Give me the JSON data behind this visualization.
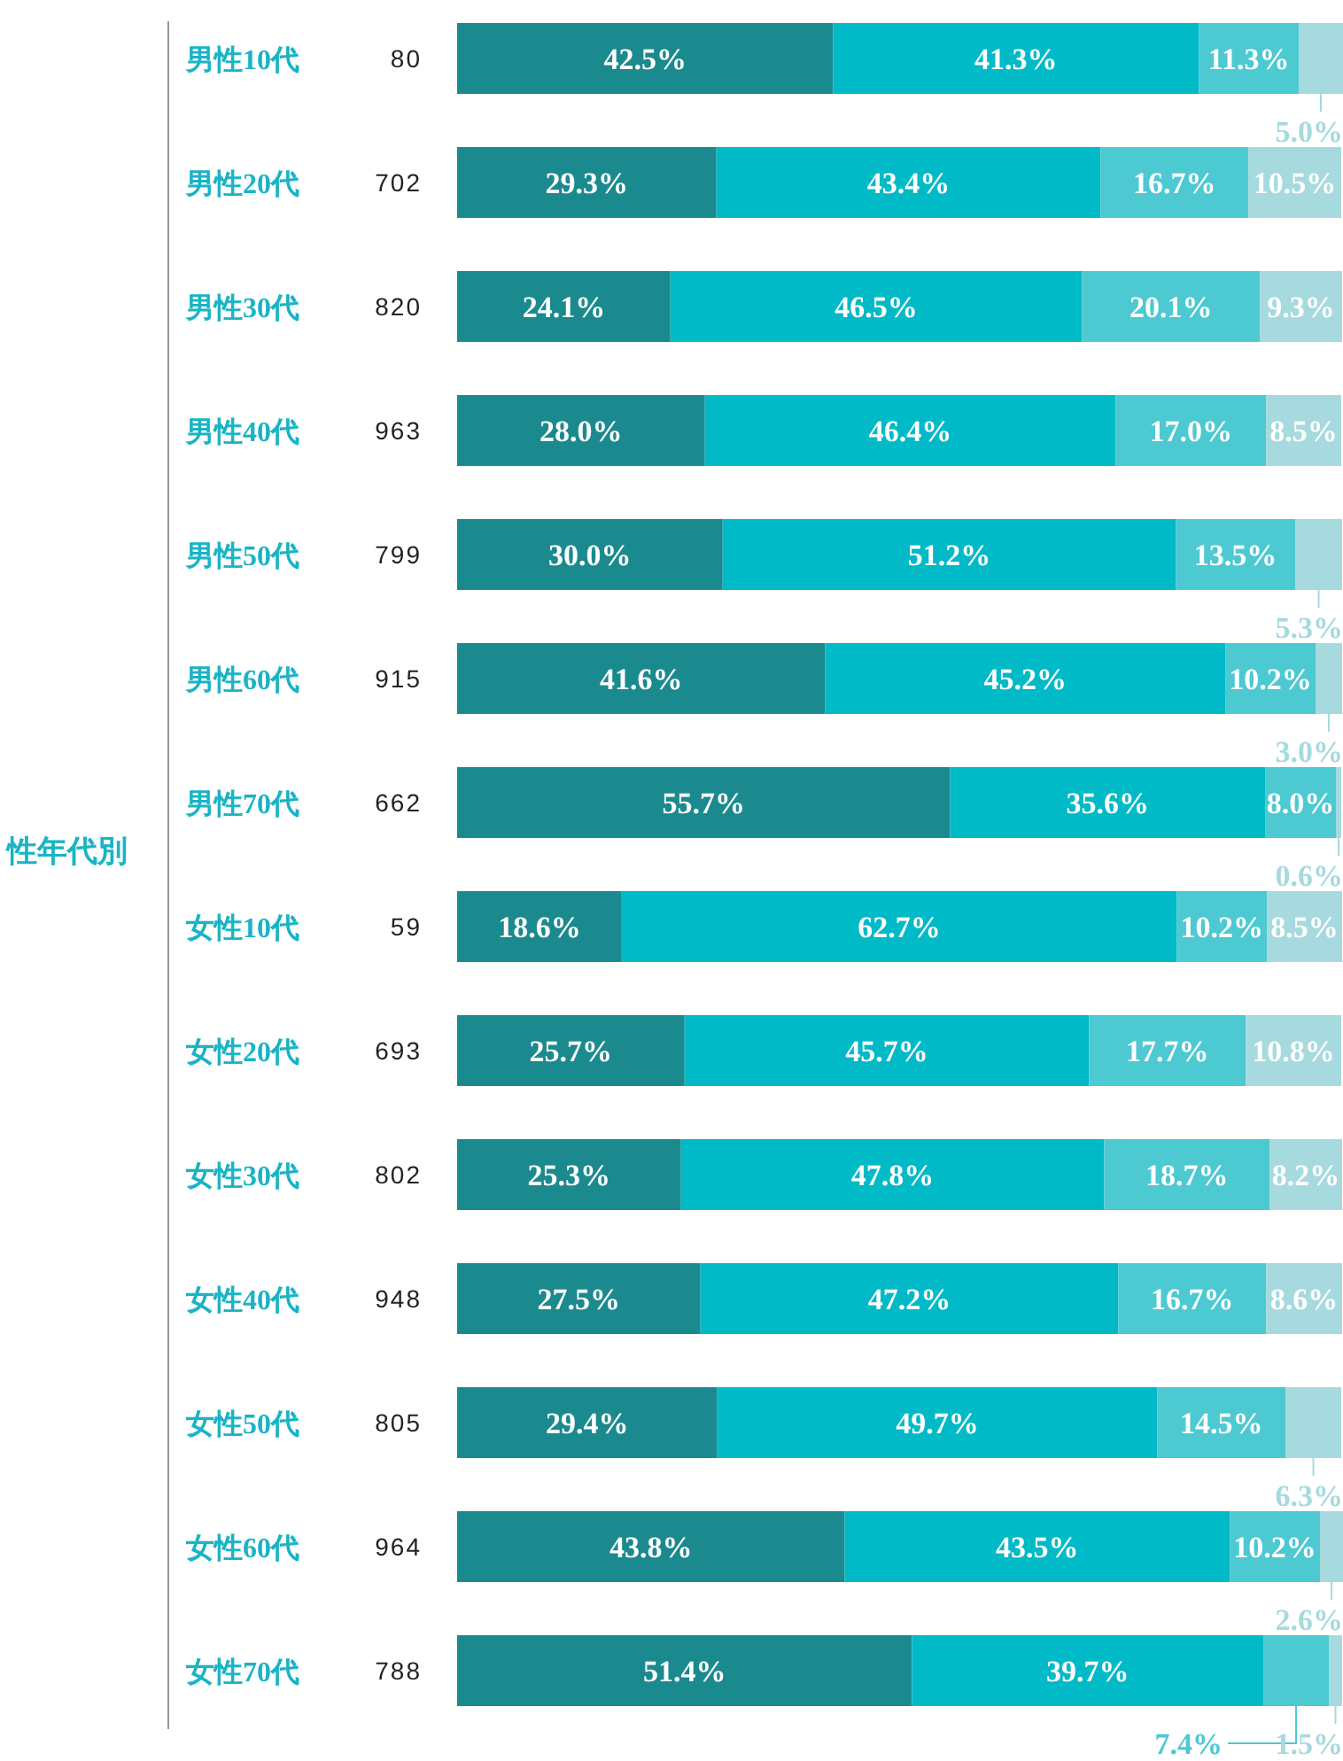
{
  "chart_data": {
    "type": "bar",
    "orientation": "horizontal",
    "stacked": true,
    "ylabel": "性年代別",
    "categories": [
      "男性10代",
      "男性20代",
      "男性30代",
      "男性40代",
      "男性50代",
      "男性60代",
      "男性70代",
      "女性10代",
      "女性20代",
      "女性30代",
      "女性40代",
      "女性50代",
      "女性60代",
      "女性70代"
    ],
    "annotations": [
      "80",
      "702",
      "820",
      "963",
      "799",
      "915",
      "662",
      "59",
      "693",
      "802",
      "948",
      "805",
      "964",
      "788"
    ],
    "xlim": [
      0,
      100.1
    ],
    "series": [
      {
        "color": "#1b8a8f",
        "values": [
          42.5,
          29.3,
          24.1,
          28.0,
          30.0,
          41.6,
          55.7,
          18.6,
          25.7,
          25.3,
          27.5,
          29.4,
          43.8,
          51.4
        ],
        "value_labels": [
          "42.5%",
          "29.3%",
          "24.1%",
          "28.0%",
          "30.0%",
          "41.6%",
          "55.7%",
          "18.6%",
          "25.7%",
          "25.3%",
          "27.5%",
          "29.4%",
          "43.8%",
          "51.4%"
        ]
      },
      {
        "color": "#00bac8",
        "values": [
          41.3,
          43.4,
          46.5,
          46.4,
          51.2,
          45.2,
          35.6,
          62.7,
          45.7,
          47.8,
          47.2,
          49.7,
          43.5,
          39.7
        ],
        "value_labels": [
          "41.3%",
          "43.4%",
          "46.5%",
          "46.4%",
          "51.2%",
          "45.2%",
          "35.6%",
          "62.7%",
          "45.7%",
          "47.8%",
          "47.2%",
          "49.7%",
          "43.5%",
          "39.7%"
        ]
      },
      {
        "color": "#4dc9d2",
        "values": [
          11.3,
          16.7,
          20.1,
          17.0,
          13.5,
          10.2,
          8.0,
          10.2,
          17.7,
          18.7,
          16.7,
          14.5,
          10.2,
          7.4
        ],
        "value_labels": [
          "11.3%",
          "16.7%",
          "20.1%",
          "17.0%",
          "13.5%",
          "10.2%",
          "8.0%",
          "10.2%",
          "17.7%",
          "18.7%",
          "16.7%",
          "14.5%",
          "10.2%",
          "7.4%"
        ]
      },
      {
        "color": "#a6dade",
        "values": [
          5.0,
          10.5,
          9.3,
          8.5,
          5.3,
          3.0,
          0.6,
          8.5,
          10.8,
          8.2,
          8.6,
          6.3,
          2.6,
          1.5
        ],
        "value_labels": [
          "5.0%",
          "10.5%",
          "9.3%",
          "8.5%",
          "5.3%",
          "3.0%",
          "0.6%",
          "8.5%",
          "10.8%",
          "8.2%",
          "8.6%",
          "6.3%",
          "2.6%",
          "1.5%"
        ]
      }
    ]
  }
}
